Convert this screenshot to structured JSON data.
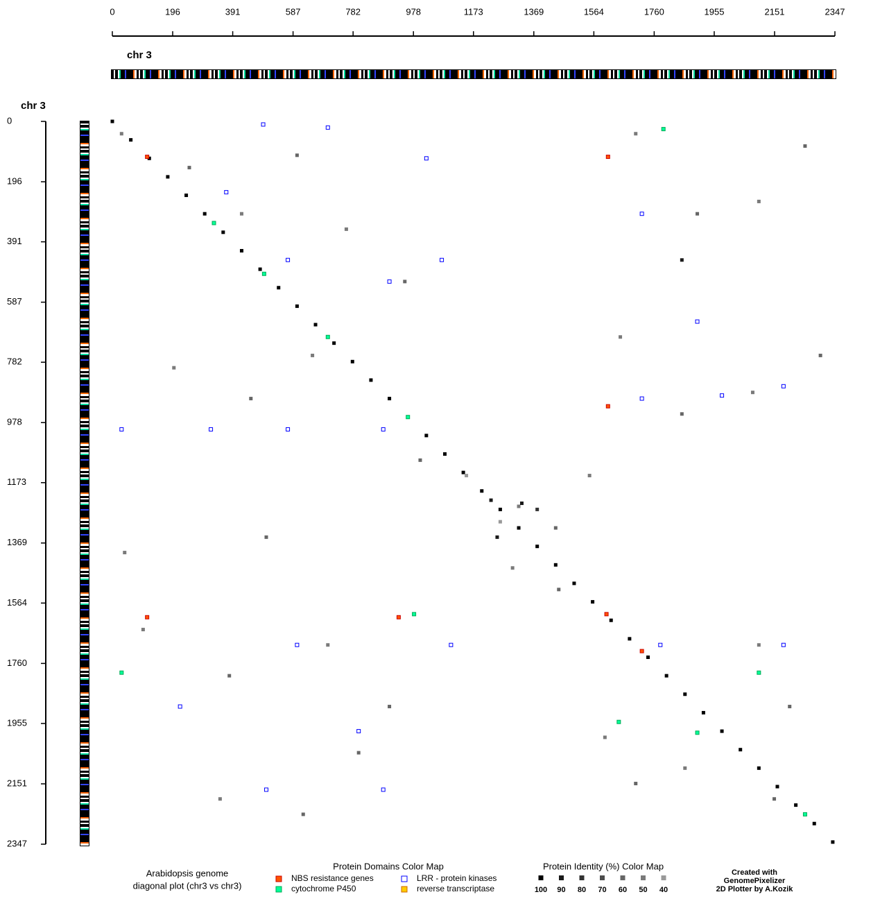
{
  "chart_data": {
    "type": "scatter",
    "title": [
      "Arabidopsis genome",
      "diagonal plot (chr3 vs chr3)"
    ],
    "x_label": "chr 3",
    "y_label": "chr 3",
    "xlim": [
      0,
      2347
    ],
    "ylim": [
      0,
      2347
    ],
    "xticks": [
      0,
      196,
      391,
      587,
      782,
      978,
      1173,
      1369,
      1564,
      1760,
      1955,
      2151,
      2347
    ],
    "yticks": [
      0,
      196,
      391,
      587,
      782,
      978,
      1173,
      1369,
      1564,
      1760,
      1955,
      2151,
      2347
    ],
    "domain_legend": {
      "title": "Protein Domains Color Map",
      "items": [
        {
          "name": "NBS resistance genes",
          "color": "#ff5500",
          "border": "#cc0000"
        },
        {
          "name": "cytochrome P450",
          "color": "#00ff99",
          "border": "#00aa55"
        },
        {
          "name": "LRR - protein kinases",
          "color": "#ffffff",
          "border": "#0000ff"
        },
        {
          "name": "reverse transcriptase",
          "color": "#ffcc00",
          "border": "#cc6600"
        }
      ]
    },
    "identity_legend": {
      "title": "Protein Identity (%) Color Map",
      "levels": [
        {
          "value": 100,
          "color": "#000000"
        },
        {
          "value": 90,
          "color": "#1a1a1a"
        },
        {
          "value": 80,
          "color": "#333333"
        },
        {
          "value": 70,
          "color": "#4d4d4d"
        },
        {
          "value": 60,
          "color": "#666666"
        },
        {
          "value": 50,
          "color": "#7a7a7a"
        },
        {
          "value": 40,
          "color": "#999999"
        }
      ]
    },
    "points": {
      "x": [
        0,
        60,
        120,
        180,
        240,
        300,
        360,
        420,
        480,
        540,
        600,
        660,
        720,
        780,
        840,
        900,
        960,
        1020,
        1080,
        1140,
        1200,
        1260,
        1320,
        1380,
        1440,
        1500,
        1560,
        1620,
        1680,
        1740,
        1800,
        1860,
        1920,
        1980,
        2040,
        2100,
        2160,
        2220,
        2280,
        2340,
        30,
        250,
        420,
        600,
        760,
        950,
        1700,
        1900,
        2100,
        2250,
        200,
        450,
        650,
        1000,
        1650,
        1850,
        2080,
        2300,
        100,
        380,
        700,
        900,
        1260,
        1320,
        1440,
        1300,
        1450,
        1600,
        1700,
        2100,
        2200,
        350,
        620,
        1860,
        2150,
        40,
        500,
        1150,
        1550,
        800,
        1230,
        1330,
        1250,
        1380,
        1850
      ],
      "y": [
        0,
        60,
        120,
        180,
        240,
        300,
        360,
        420,
        480,
        540,
        600,
        660,
        720,
        780,
        840,
        900,
        960,
        1020,
        1080,
        1140,
        1200,
        1260,
        1320,
        1380,
        1440,
        1500,
        1560,
        1620,
        1680,
        1740,
        1800,
        1860,
        1920,
        1980,
        2040,
        2100,
        2160,
        2220,
        2280,
        2340,
        40,
        150,
        300,
        110,
        350,
        520,
        40,
        300,
        260,
        80,
        800,
        900,
        760,
        1100,
        700,
        950,
        880,
        760,
        1650,
        1800,
        1700,
        1900,
        1300,
        1250,
        1320,
        1450,
        1520,
        2000,
        2150,
        1700,
        1900,
        2200,
        2250,
        2100,
        2200,
        1400,
        1350,
        1150,
        1150,
        2050,
        1230,
        1240,
        1350,
        1260,
        450
      ],
      "identity": [
        100,
        100,
        100,
        100,
        100,
        100,
        100,
        100,
        100,
        100,
        100,
        100,
        100,
        100,
        100,
        100,
        100,
        100,
        100,
        100,
        100,
        100,
        100,
        100,
        100,
        100,
        100,
        100,
        100,
        100,
        100,
        100,
        100,
        100,
        100,
        100,
        100,
        100,
        100,
        100,
        50,
        60,
        50,
        60,
        50,
        60,
        50,
        60,
        50,
        60,
        50,
        60,
        50,
        60,
        50,
        60,
        50,
        60,
        50,
        60,
        50,
        60,
        40,
        50,
        60,
        50,
        60,
        50,
        60,
        50,
        60,
        50,
        60,
        50,
        60,
        50,
        60,
        40,
        50,
        60,
        90,
        90,
        90,
        80,
        90
      ]
    },
    "domain_points": {
      "x": [
        113,
        1610,
        1610,
        1605,
        1720,
        113,
        930,
        330,
        493,
        700,
        960,
        1645,
        1900,
        2250,
        30,
        980,
        1790,
        2100,
        490,
        700,
        1020,
        370,
        570,
        900,
        1720,
        1900,
        30,
        320,
        570,
        880,
        1720,
        1980,
        2180,
        1780,
        600,
        1100,
        220,
        800,
        500,
        880,
        2180,
        1070
      ],
      "y": [
        115,
        115,
        925,
        1600,
        1720,
        1610,
        1610,
        330,
        495,
        700,
        960,
        1950,
        1985,
        2250,
        1790,
        1600,
        25,
        1790,
        10,
        20,
        120,
        230,
        450,
        520,
        300,
        650,
        1000,
        1000,
        1000,
        1000,
        900,
        890,
        860,
        1700,
        1700,
        1700,
        1900,
        1980,
        2170,
        2170,
        1700,
        450
      ],
      "domain": [
        0,
        0,
        0,
        0,
        0,
        0,
        0,
        1,
        1,
        1,
        1,
        1,
        1,
        1,
        1,
        1,
        1,
        1,
        2,
        2,
        2,
        2,
        2,
        2,
        2,
        2,
        2,
        2,
        2,
        2,
        2,
        2,
        2,
        2,
        2,
        2,
        2,
        2,
        2,
        2,
        2,
        2
      ]
    },
    "credits": [
      "Created with",
      "GenomePixelizer",
      "2D Plotter by A.Kozik"
    ]
  }
}
